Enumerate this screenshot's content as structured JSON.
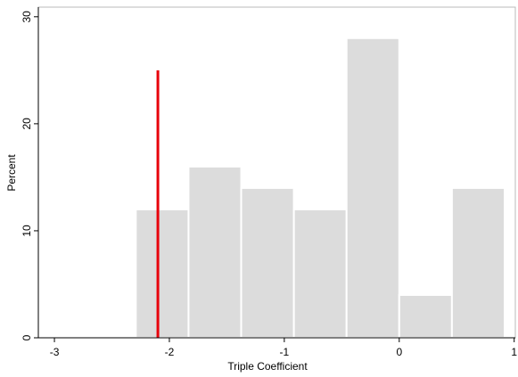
{
  "chart_data": {
    "type": "histogram",
    "x_label": "Triple Coefficient",
    "y_label": "Percent",
    "bins": [
      -2.2917,
      -1.8333,
      -1.375,
      -0.9167,
      -0.4583,
      0,
      0.4583,
      0.9167
    ],
    "values": [
      12,
      16,
      14,
      12,
      28,
      4,
      14
    ],
    "color": "#dcdcdc",
    "reference_line": {
      "x": -2.1,
      "ymax": 25,
      "color": "#e8000b"
    },
    "xlim": [
      -3.14,
      1.01
    ],
    "ylim": [
      0,
      30.9
    ],
    "xticks": [
      -3,
      -2,
      -1,
      0,
      1
    ],
    "yticks": [
      0,
      10,
      20,
      30
    ]
  }
}
